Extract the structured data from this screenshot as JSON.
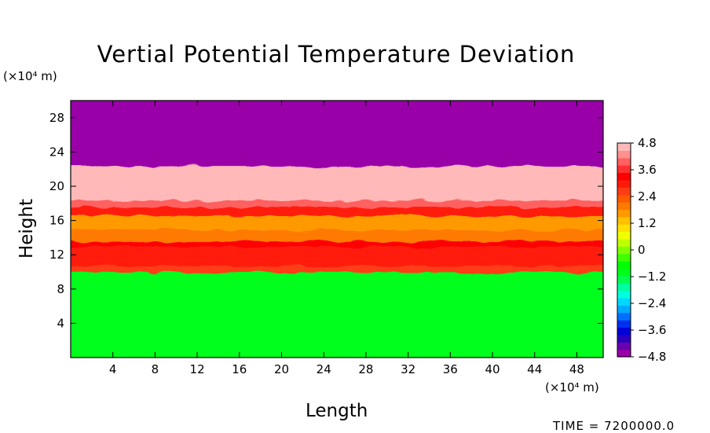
{
  "chart_data": {
    "type": "heatmap",
    "title": "Vertial Potential Temperature Deviation",
    "xlabel": "Length",
    "ylabel": "Height",
    "x_unit": "(×10⁴ m)",
    "y_unit": "(×10⁴ m)",
    "x_ticks": [
      4,
      8,
      12,
      16,
      20,
      24,
      28,
      32,
      36,
      40,
      44,
      48
    ],
    "y_ticks": [
      4,
      8,
      12,
      16,
      20,
      24,
      28
    ],
    "xlim": [
      0,
      50.5
    ],
    "ylim": [
      0,
      30
    ],
    "layers": [
      {
        "y_bottom": 0,
        "y_top": 10.2,
        "value": 0.2,
        "color": "#00ff1a"
      },
      {
        "y_bottom": 10.2,
        "y_top": 11.0,
        "value": 3.2,
        "color": "#ff3c14"
      },
      {
        "y_bottom": 11.0,
        "y_top": 13.2,
        "value": 3.9,
        "color": "#ff1a0a"
      },
      {
        "y_bottom": 13.2,
        "y_top": 13.8,
        "value": 4.3,
        "color": "#ff0000"
      },
      {
        "y_bottom": 13.8,
        "y_top": 15.2,
        "value": 2.9,
        "color": "#ff7a00"
      },
      {
        "y_bottom": 15.2,
        "y_top": 16.8,
        "value": 2.5,
        "color": "#ff9900"
      },
      {
        "y_bottom": 16.8,
        "y_top": 17.8,
        "value": 4.1,
        "color": "#ff1a0a"
      },
      {
        "y_bottom": 17.8,
        "y_top": 18.6,
        "value": 4.5,
        "color": "#ff6060"
      },
      {
        "y_bottom": 18.6,
        "y_top": 22.6,
        "value": 4.8,
        "color": "#ffb9b9"
      },
      {
        "y_bottom": 22.6,
        "y_top": 30,
        "value": -4.8,
        "color": "#9900a8"
      }
    ],
    "colorbar": {
      "min": -4.8,
      "max": 4.8,
      "tick_labels": [
        "4.8",
        "3.6",
        "2.4",
        "1.2",
        "0",
        "−1.2",
        "−2.4",
        "−3.6",
        "−4.8"
      ],
      "tick_values": [
        4.8,
        3.6,
        2.4,
        1.2,
        0,
        -1.2,
        -2.4,
        -3.6,
        -4.8
      ],
      "colors": [
        "#9900a8",
        "#6a00b0",
        "#2a00c0",
        "#0000d8",
        "#0030f0",
        "#0070ff",
        "#00aaff",
        "#00d8ff",
        "#00ffe0",
        "#00ffa0",
        "#00ff50",
        "#00ff1a",
        "#00ff00",
        "#40ff00",
        "#80ff00",
        "#c0ff00",
        "#f0ff00",
        "#ffe000",
        "#ffc000",
        "#ff9900",
        "#ff7a00",
        "#ff5a00",
        "#ff3c14",
        "#ff1a0a",
        "#ff0000",
        "#ff3030",
        "#ff6060",
        "#ff9090",
        "#ffb9b9"
      ]
    },
    "timestamp": "TIME = 7200000.0"
  }
}
